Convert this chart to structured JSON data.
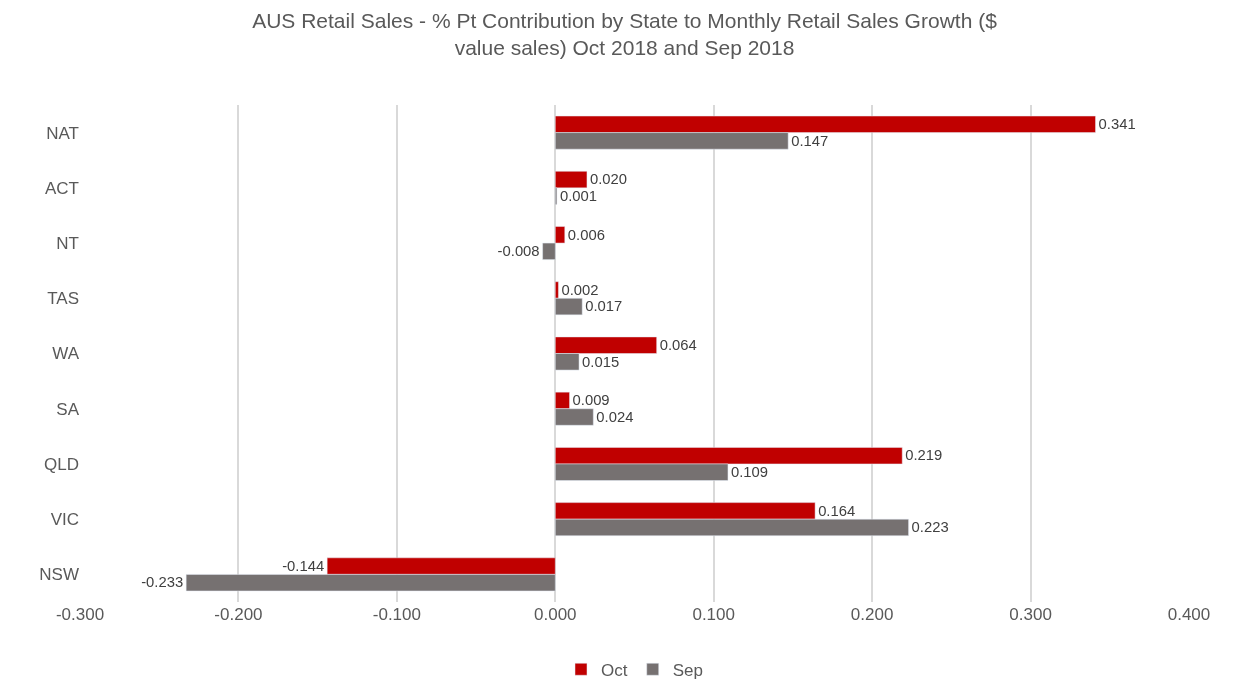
{
  "chart_data": {
    "type": "bar",
    "orientation": "horizontal",
    "title": "AUS Retail Sales - % Pt Contribution by State to Monthly Retail Sales Growth ($ value sales) Oct 2018 and Sep 2018",
    "categories": [
      "NAT",
      "ACT",
      "NT",
      "TAS",
      "WA",
      "SA",
      "QLD",
      "VIC",
      "NSW"
    ],
    "series": [
      {
        "name": "Oct",
        "color": "#c00000",
        "values": [
          0.341,
          0.02,
          0.006,
          0.002,
          0.064,
          0.009,
          0.219,
          0.164,
          -0.144
        ],
        "value_labels": [
          "0.341",
          "0.020",
          "0.006",
          "0.002",
          "0.064",
          "0.009",
          "0.219",
          "0.164",
          "-0.144"
        ]
      },
      {
        "name": "Sep",
        "color": "#767171",
        "values": [
          0.147,
          0.001,
          -0.008,
          0.017,
          0.015,
          0.024,
          0.109,
          0.223,
          -0.233
        ],
        "value_labels": [
          "0.147",
          "0.001",
          "-0.008",
          "0.017",
          "0.015",
          "0.024",
          "0.109",
          "0.223",
          "-0.233"
        ]
      }
    ],
    "xlim": [
      -0.3,
      0.4
    ],
    "xticks": [
      {
        "value": -0.3,
        "label": "-0.300"
      },
      {
        "value": -0.2,
        "label": "-0.200"
      },
      {
        "value": -0.1,
        "label": "-0.100"
      },
      {
        "value": 0,
        "label": "0.000"
      },
      {
        "value": 0.1,
        "label": "0.100"
      },
      {
        "value": 0.2,
        "label": "0.200"
      },
      {
        "value": 0.3,
        "label": "0.300"
      },
      {
        "value": 0.4,
        "label": "0.400"
      }
    ],
    "grid": "x",
    "legend": "bottom"
  }
}
